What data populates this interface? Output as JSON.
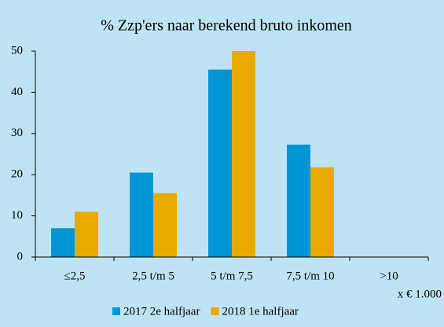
{
  "chart_data": {
    "type": "bar",
    "title": "% Zzp'ers naar berekend bruto inkomen",
    "categories": [
      "≤2,5",
      "2,5 t/m 5",
      "5 t/m 7,5",
      "7,5 t/m 10",
      ">10"
    ],
    "series": [
      {
        "name": "2017 2e halfjaar",
        "color": "#0096d6",
        "values": [
          7,
          20.5,
          45.5,
          27.3,
          0
        ]
      },
      {
        "name": "2018 1e halfjaar",
        "color": "#e8a900",
        "values": [
          11,
          15.5,
          50,
          21.8,
          0
        ]
      }
    ],
    "x_unit_label": "x € 1.000",
    "ylim": [
      0,
      50
    ],
    "yticks": [
      0,
      10,
      20,
      30,
      40,
      50
    ],
    "grid": false,
    "legend": "bottom"
  }
}
